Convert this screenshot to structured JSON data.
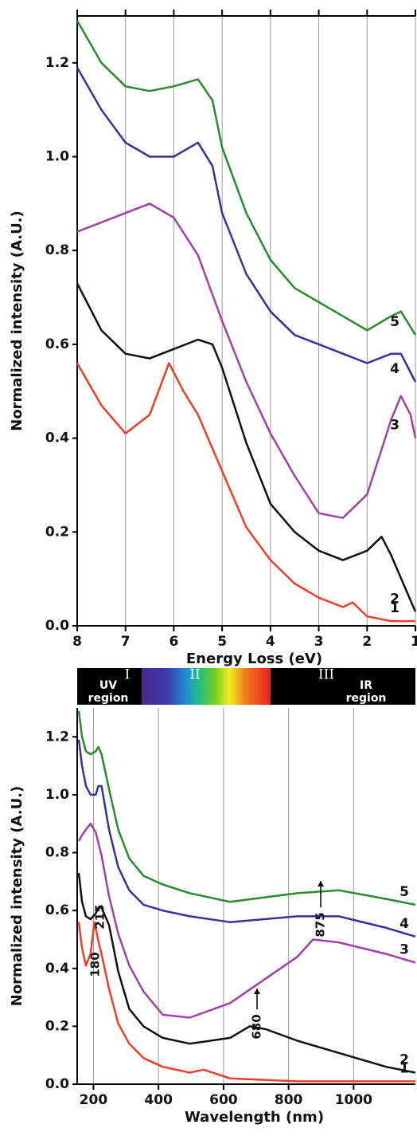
{
  "chart_data": [
    {
      "type": "line",
      "x_label": "Energy Loss (eV)",
      "y_label": "Normalized intensity (A.U.)",
      "xlim": [
        8,
        1
      ],
      "ylim": [
        0,
        1.3
      ],
      "xticks": [
        8,
        7,
        6,
        5,
        4,
        3,
        2,
        1
      ],
      "yticks": [
        {
          "value": 0,
          "label": "0.0"
        },
        0.2,
        0.4,
        0.6,
        0.8,
        {
          "value": 1,
          "label": "1.0"
        },
        1.2
      ],
      "grid": true,
      "series": [
        {
          "name": "5",
          "color": "#2a8a2e",
          "x": [
            8,
            7.5,
            7,
            6.5,
            6,
            5.5,
            5.2,
            5,
            4.5,
            4,
            3.5,
            3,
            2.5,
            2,
            1.5,
            1.3,
            1
          ],
          "values": [
            1.29,
            1.2,
            1.15,
            1.14,
            1.15,
            1.165,
            1.12,
            1.02,
            0.88,
            0.78,
            0.72,
            0.69,
            0.66,
            0.63,
            0.66,
            0.67,
            0.62
          ]
        },
        {
          "name": "4",
          "color": "#33339a",
          "x": [
            8,
            7.5,
            7,
            6.5,
            6,
            5.5,
            5.2,
            5,
            4.5,
            4,
            3.5,
            3,
            2.5,
            2,
            1.5,
            1.3,
            1
          ],
          "values": [
            1.19,
            1.1,
            1.03,
            1.0,
            1.0,
            1.03,
            0.98,
            0.88,
            0.75,
            0.67,
            0.62,
            0.6,
            0.58,
            0.56,
            0.58,
            0.58,
            0.52
          ]
        },
        {
          "name": "3",
          "color": "#a040a8",
          "x": [
            8,
            7.5,
            7,
            6.5,
            6,
            5.5,
            5,
            4.5,
            4,
            3.5,
            3,
            2.5,
            2,
            1.5,
            1.3,
            1.1,
            1
          ],
          "values": [
            0.84,
            0.86,
            0.88,
            0.9,
            0.87,
            0.79,
            0.65,
            0.52,
            0.41,
            0.32,
            0.24,
            0.23,
            0.28,
            0.44,
            0.49,
            0.45,
            0.4
          ]
        },
        {
          "name": "2",
          "color": "#111111",
          "x": [
            8,
            7.5,
            7,
            6.5,
            6,
            5.5,
            5.2,
            5,
            4.5,
            4,
            3.5,
            3,
            2.5,
            2,
            1.7,
            1.5,
            1
          ],
          "values": [
            0.73,
            0.63,
            0.58,
            0.57,
            0.59,
            0.61,
            0.6,
            0.55,
            0.39,
            0.26,
            0.2,
            0.16,
            0.14,
            0.16,
            0.19,
            0.15,
            0.03
          ]
        },
        {
          "name": "1",
          "color": "#e8402a",
          "x": [
            8,
            7.5,
            7,
            6.5,
            6.1,
            5.8,
            5.5,
            5,
            4.5,
            4,
            3.5,
            3,
            2.5,
            2.3,
            2,
            1.5,
            1
          ],
          "values": [
            0.56,
            0.47,
            0.41,
            0.45,
            0.56,
            0.5,
            0.45,
            0.33,
            0.21,
            0.14,
            0.09,
            0.06,
            0.04,
            0.05,
            0.02,
            0.01,
            0.01
          ]
        }
      ]
    },
    {
      "type": "line",
      "x_label": "Wavelength (nm)",
      "y_label": "Normalized intensity (A.U.)",
      "xlim": [
        150,
        1190
      ],
      "ylim": [
        0,
        1.3
      ],
      "xticks": [
        200,
        400,
        600,
        800,
        1000
      ],
      "yticks": [
        {
          "value": 0,
          "label": "0.0"
        },
        0.2,
        0.4,
        0.6,
        0.8,
        {
          "value": 1,
          "label": "1.0"
        },
        1.2
      ],
      "grid": true,
      "spectrum_labels": [
        "I",
        "II",
        "III"
      ],
      "region_labels": [
        [
          "UV",
          "region"
        ],
        [
          "IR",
          "region"
        ]
      ],
      "annotations": [
        "215",
        "180",
        "680",
        "875"
      ],
      "series": [
        {
          "name": "5",
          "color": "#2a8a2e",
          "x": [
            155,
            165,
            177,
            191,
            207,
            215,
            225,
            248,
            276,
            310,
            354,
            413,
            496,
            620,
            827,
            954,
            1100,
            1190
          ],
          "values": [
            1.29,
            1.2,
            1.15,
            1.14,
            1.15,
            1.165,
            1.14,
            1.02,
            0.88,
            0.78,
            0.72,
            0.69,
            0.66,
            0.63,
            0.66,
            0.67,
            0.64,
            0.62
          ]
        },
        {
          "name": "4",
          "color": "#33339a",
          "x": [
            155,
            165,
            177,
            191,
            207,
            215,
            225,
            248,
            276,
            310,
            354,
            413,
            496,
            620,
            827,
            954,
            1100,
            1190
          ],
          "values": [
            1.19,
            1.1,
            1.03,
            1.0,
            1.0,
            1.03,
            1.03,
            0.88,
            0.75,
            0.67,
            0.62,
            0.6,
            0.58,
            0.56,
            0.58,
            0.58,
            0.54,
            0.51
          ]
        },
        {
          "name": "3",
          "color": "#a040a8",
          "x": [
            155,
            165,
            177,
            191,
            207,
            225,
            248,
            276,
            310,
            354,
            413,
            496,
            620,
            827,
            875,
            954,
            1100,
            1190
          ],
          "values": [
            0.84,
            0.86,
            0.88,
            0.9,
            0.87,
            0.79,
            0.65,
            0.52,
            0.41,
            0.32,
            0.24,
            0.23,
            0.28,
            0.44,
            0.5,
            0.49,
            0.45,
            0.42
          ]
        },
        {
          "name": "2",
          "color": "#111111",
          "x": [
            155,
            165,
            177,
            191,
            207,
            215,
            225,
            248,
            276,
            310,
            354,
            413,
            496,
            620,
            680,
            730,
            827,
            1100,
            1190
          ],
          "values": [
            0.73,
            0.63,
            0.58,
            0.57,
            0.59,
            0.61,
            0.61,
            0.55,
            0.39,
            0.26,
            0.2,
            0.16,
            0.14,
            0.16,
            0.2,
            0.19,
            0.15,
            0.06,
            0.04
          ]
        },
        {
          "name": "1",
          "color": "#e8402a",
          "x": [
            155,
            165,
            177,
            191,
            203,
            214,
            225,
            248,
            276,
            310,
            354,
            413,
            496,
            539,
            620,
            827,
            1190
          ],
          "values": [
            0.56,
            0.47,
            0.41,
            0.45,
            0.56,
            0.5,
            0.45,
            0.33,
            0.21,
            0.14,
            0.09,
            0.06,
            0.04,
            0.05,
            0.02,
            0.01,
            0.01
          ]
        }
      ]
    }
  ]
}
